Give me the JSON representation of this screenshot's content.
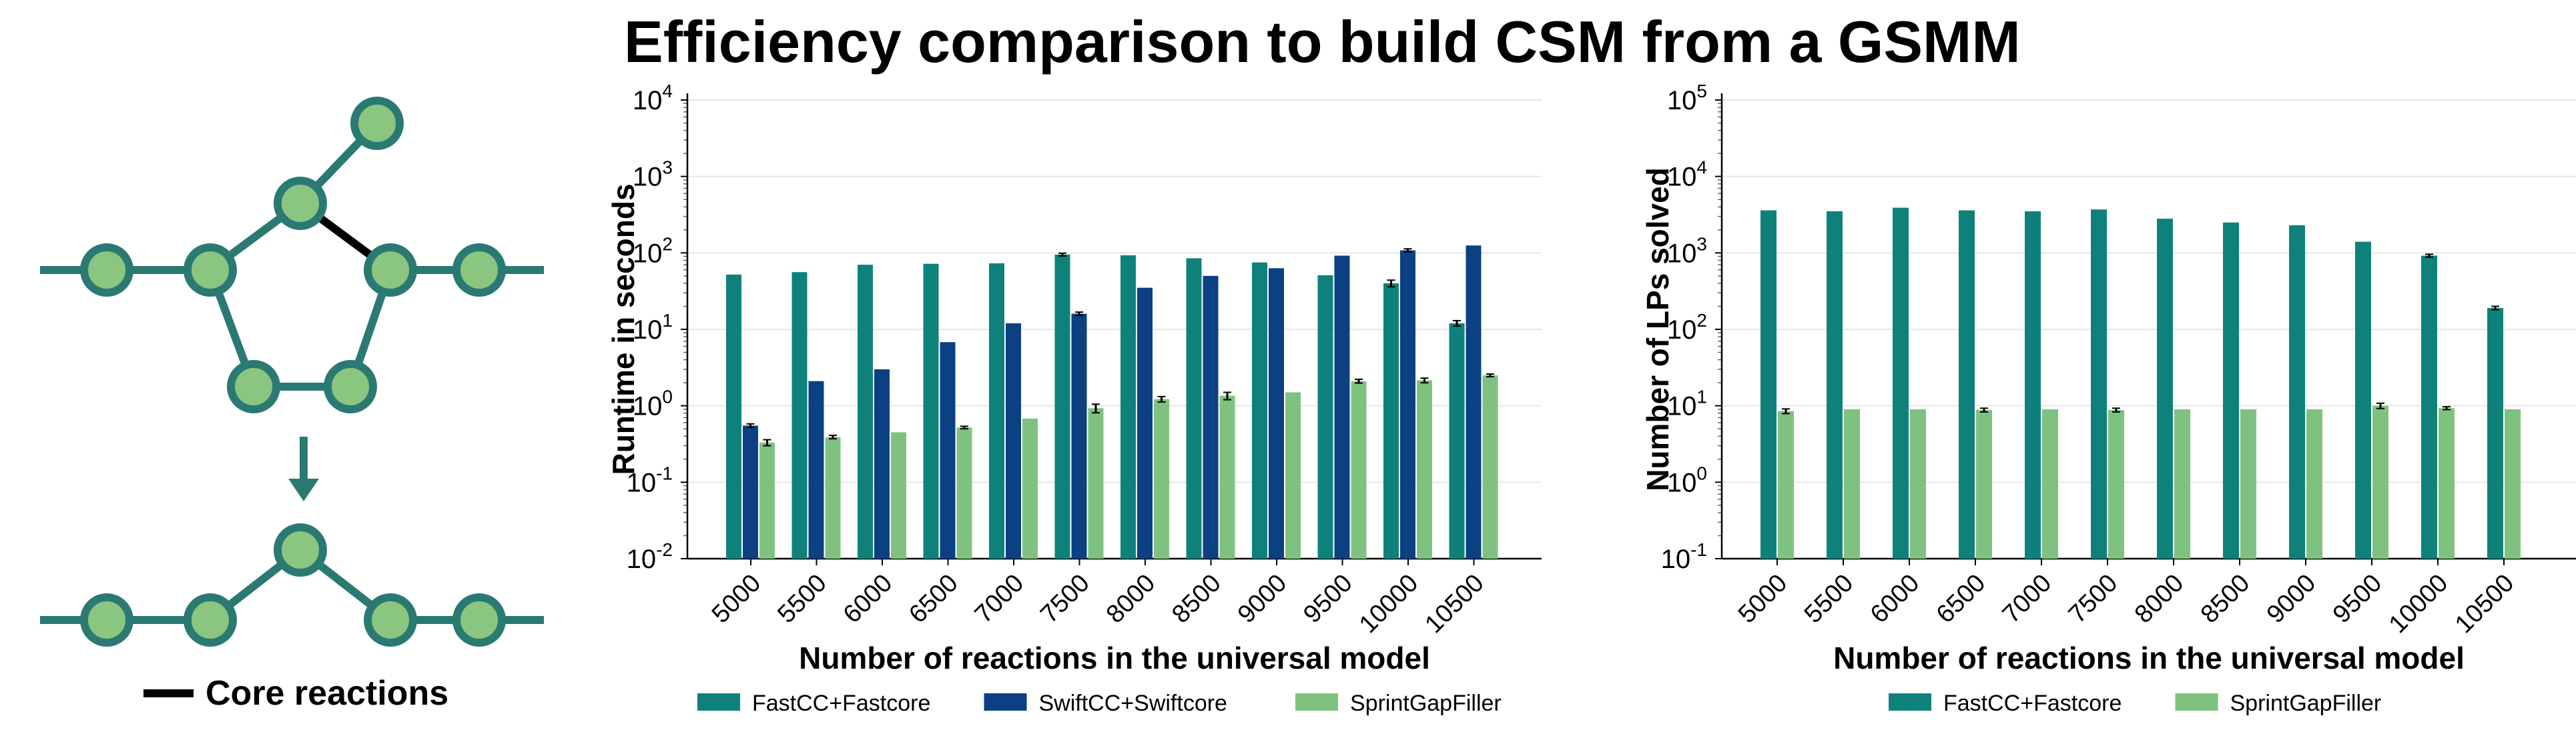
{
  "title": "Efficiency comparison to build CSM from a GSMM",
  "colors": {
    "fastcc": "#0e827a",
    "swiftcc": "#0b4083",
    "sprint": "#7fc27f",
    "node_fill": "#8ac67f",
    "node_stroke": "#2a7a73",
    "edge": "#2a7a73",
    "core_edge": "#000000",
    "grid": "#e6e6e6"
  },
  "schematic": {
    "legend_label": "Core reactions",
    "arrow_icon": "down-arrow-icon"
  },
  "chart_data": [
    {
      "type": "bar",
      "yscale": "log",
      "ylim": [
        0.01,
        10000
      ],
      "yticks": [
        "10^-2",
        "10^-1",
        "10^0",
        "10^1",
        "10^2",
        "10^3",
        "10^4"
      ],
      "ylabel": "Runtime in seconds",
      "xlabel": "Number of reactions in the universal model",
      "categories": [
        "5000",
        "5500",
        "6000",
        "6500",
        "7000",
        "7500",
        "8000",
        "8500",
        "9000",
        "9500",
        "10000",
        "10500"
      ],
      "grid": true,
      "legend_position": "bottom",
      "series": [
        {
          "name": "FastCC+Fastcore",
          "color": "#0e827a",
          "values": [
            52,
            56,
            70,
            72,
            73,
            95,
            93,
            85,
            75,
            51,
            40,
            12
          ],
          "errors": [
            0,
            0,
            0,
            0,
            0,
            4,
            0,
            0,
            0,
            0,
            4,
            1
          ]
        },
        {
          "name": "SwiftCC+Swiftcore",
          "color": "#0b4083",
          "values": [
            0.55,
            2.1,
            3.0,
            6.8,
            12,
            16,
            35,
            50,
            63,
            92,
            108,
            125
          ],
          "errors": [
            0.03,
            0,
            0,
            0,
            0,
            0.8,
            0,
            0,
            0,
            0,
            5,
            0
          ]
        },
        {
          "name": "SprintGapFiller",
          "color": "#7fc27f",
          "values": [
            0.33,
            0.39,
            0.45,
            0.52,
            0.68,
            0.93,
            1.22,
            1.35,
            1.5,
            2.1,
            2.15,
            2.5
          ],
          "errors": [
            0.03,
            0.02,
            0,
            0.02,
            0,
            0.12,
            0.1,
            0.15,
            0,
            0.12,
            0.15,
            0.1
          ]
        }
      ]
    },
    {
      "type": "bar",
      "yscale": "log",
      "ylim": [
        0.1,
        100000
      ],
      "yticks": [
        "10^-1",
        "10^0",
        "10^1",
        "10^2",
        "10^3",
        "10^4",
        "10^5"
      ],
      "ylabel": "Number of LPs solved",
      "xlabel": "Number of reactions in the universal model",
      "categories": [
        "5000",
        "5500",
        "6000",
        "6500",
        "7000",
        "7500",
        "8000",
        "8500",
        "9000",
        "9500",
        "10000",
        "10500"
      ],
      "grid": true,
      "legend_position": "bottom",
      "series": [
        {
          "name": "FastCC+Fastcore",
          "color": "#0e827a",
          "values": [
            3600,
            3500,
            3900,
            3600,
            3500,
            3700,
            2800,
            2500,
            2300,
            1400,
            920,
            190
          ],
          "errors": [
            0,
            0,
            0,
            0,
            0,
            0,
            0,
            0,
            0,
            0,
            40,
            10
          ]
        },
        {
          "name": "SprintGapFiller",
          "color": "#7fc27f",
          "values": [
            8.5,
            9,
            9,
            8.8,
            9,
            8.8,
            9,
            9,
            9,
            10,
            9.3,
            9
          ],
          "errors": [
            0.6,
            0,
            0,
            0.5,
            0,
            0.5,
            0,
            0,
            0,
            0.8,
            0.4,
            0
          ]
        }
      ]
    }
  ]
}
